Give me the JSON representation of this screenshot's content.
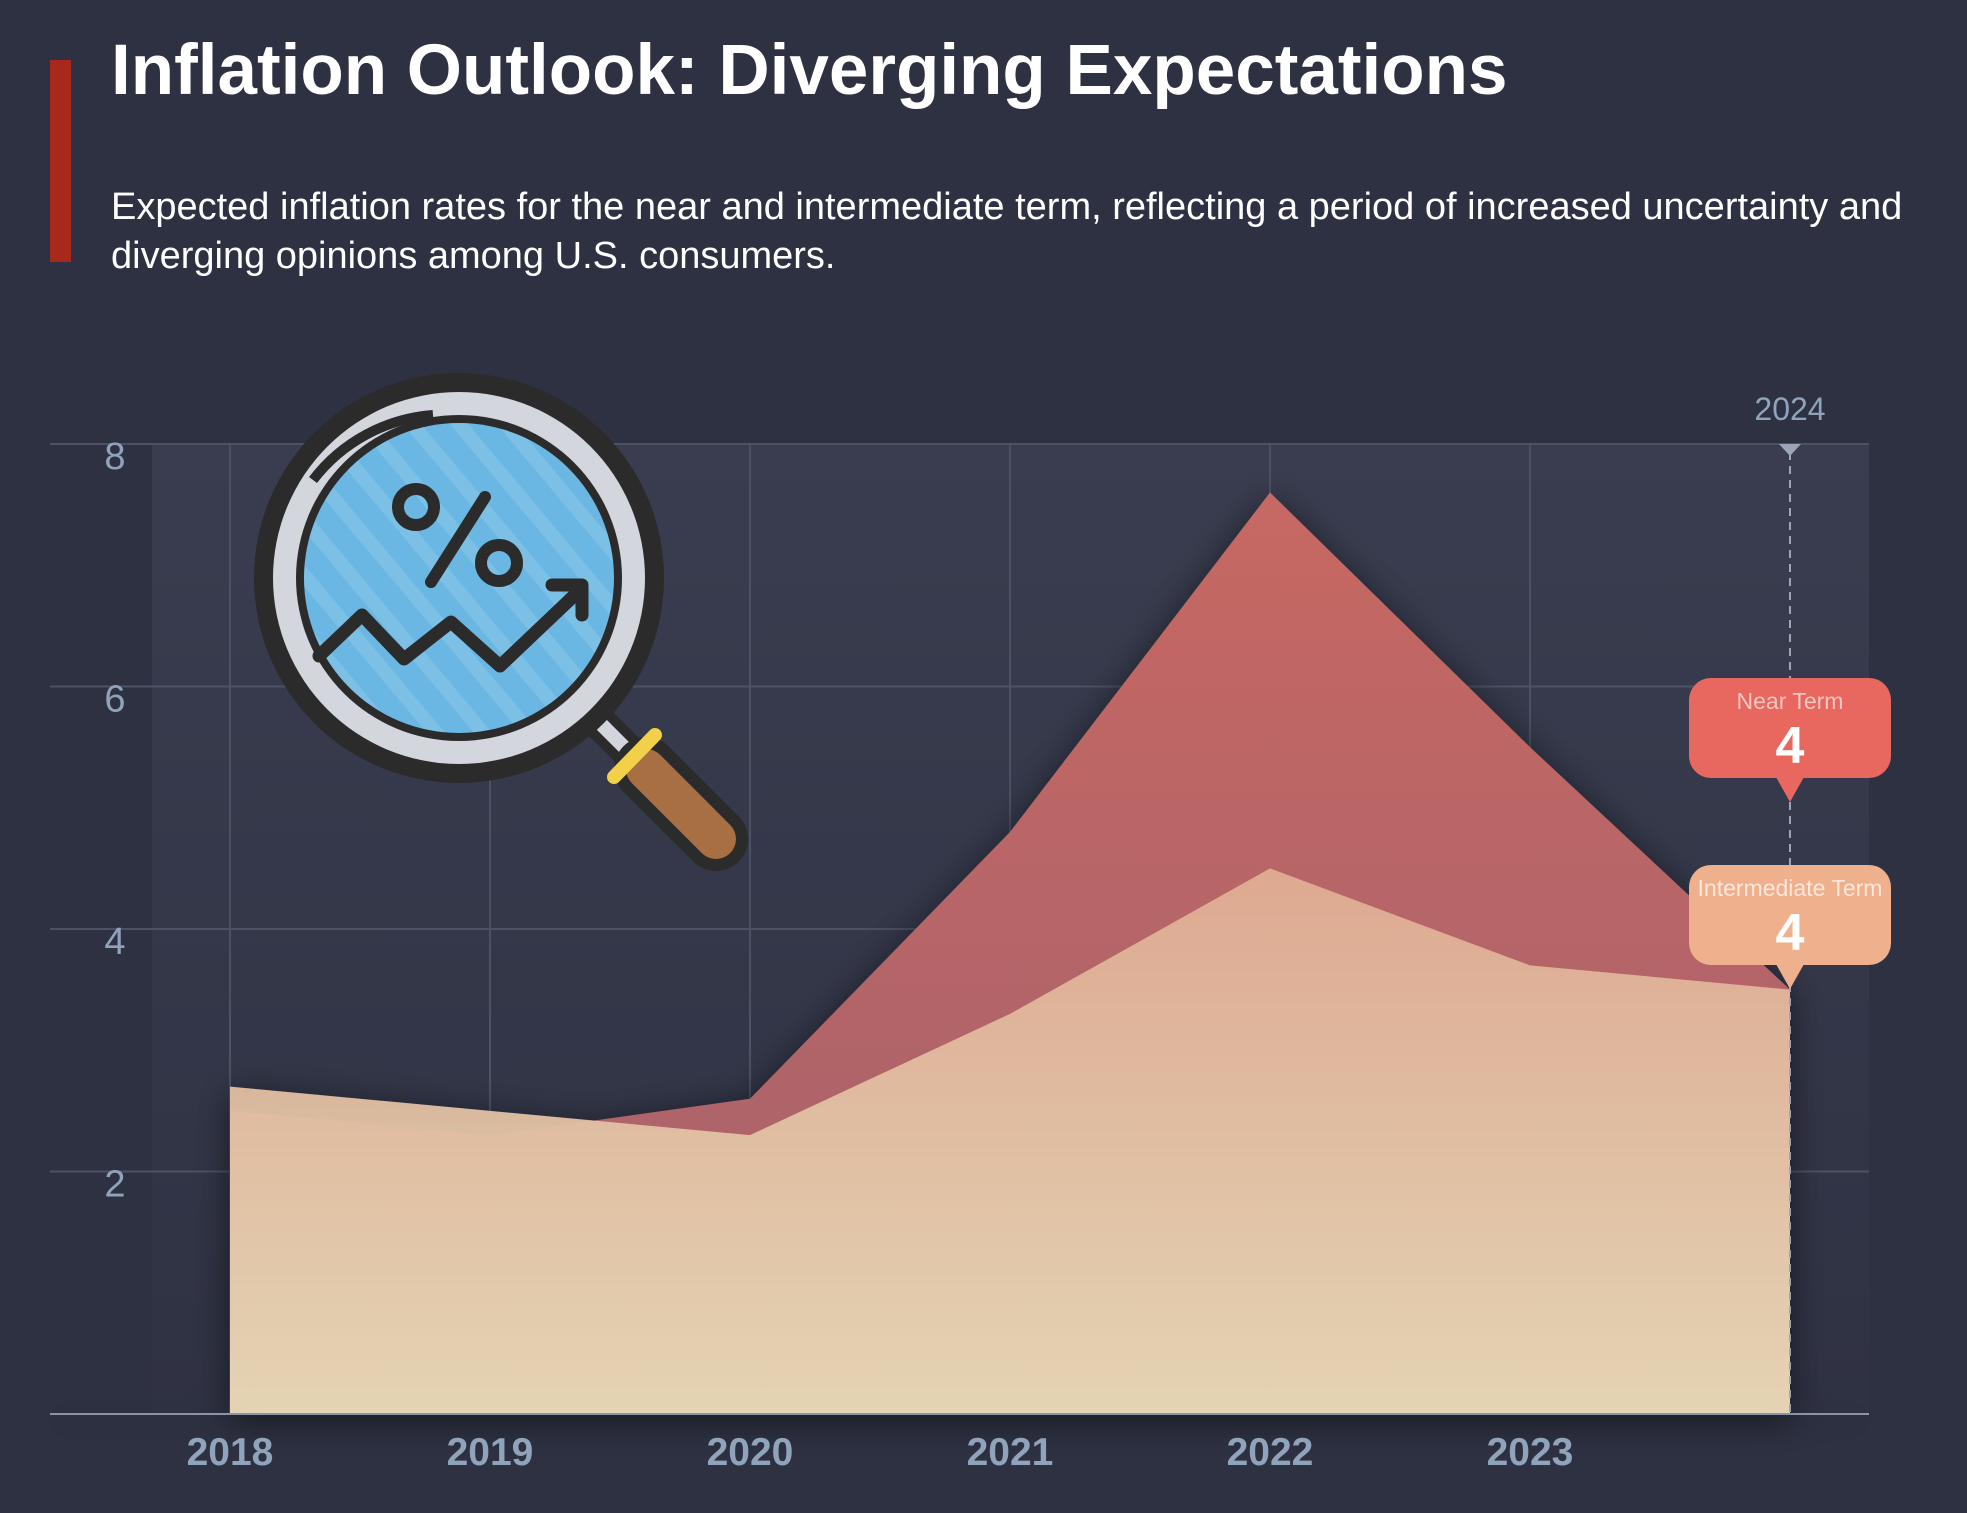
{
  "header": {
    "title": "Inflation Outlook: Diverging Expectations",
    "subtitle": "Expected inflation rates for the near and intermediate term, reflecting a period of increased uncertainty and diverging opinions among U.S. consumers."
  },
  "icon": "magnifying-glass-percent-trend-icon",
  "colors": {
    "background": "#2e3142",
    "accent": "#a8281c",
    "near_term": "#e8675f",
    "intermediate_term": "#efb08e",
    "axis_text": "#8fa3ba"
  },
  "chart_data": {
    "type": "area",
    "title": "",
    "xlabel": "",
    "ylabel": "",
    "x": [
      "2018",
      "2019",
      "2020",
      "2021",
      "2022",
      "2023",
      "2024"
    ],
    "x_tick_labels": [
      "2018",
      "2019",
      "2020",
      "2021",
      "2022",
      "2023"
    ],
    "y_ticks": [
      2,
      4,
      6,
      8
    ],
    "ylim": [
      0,
      8
    ],
    "grid": true,
    "series": [
      {
        "name": "Near Term",
        "values": [
          2.5,
          2.3,
          2.6,
          4.8,
          7.6,
          5.5,
          3.5
        ]
      },
      {
        "name": "Intermediate Term",
        "values": [
          2.7,
          2.5,
          2.3,
          3.3,
          4.5,
          3.7,
          3.5
        ]
      }
    ],
    "highlight": {
      "x": "2024",
      "label": "2024",
      "callouts": [
        {
          "series": "Near Term",
          "name": "Near Term",
          "display_value": "4"
        },
        {
          "series": "Intermediate Term",
          "name": "Intermediate Term",
          "display_value": "4"
        }
      ]
    }
  }
}
